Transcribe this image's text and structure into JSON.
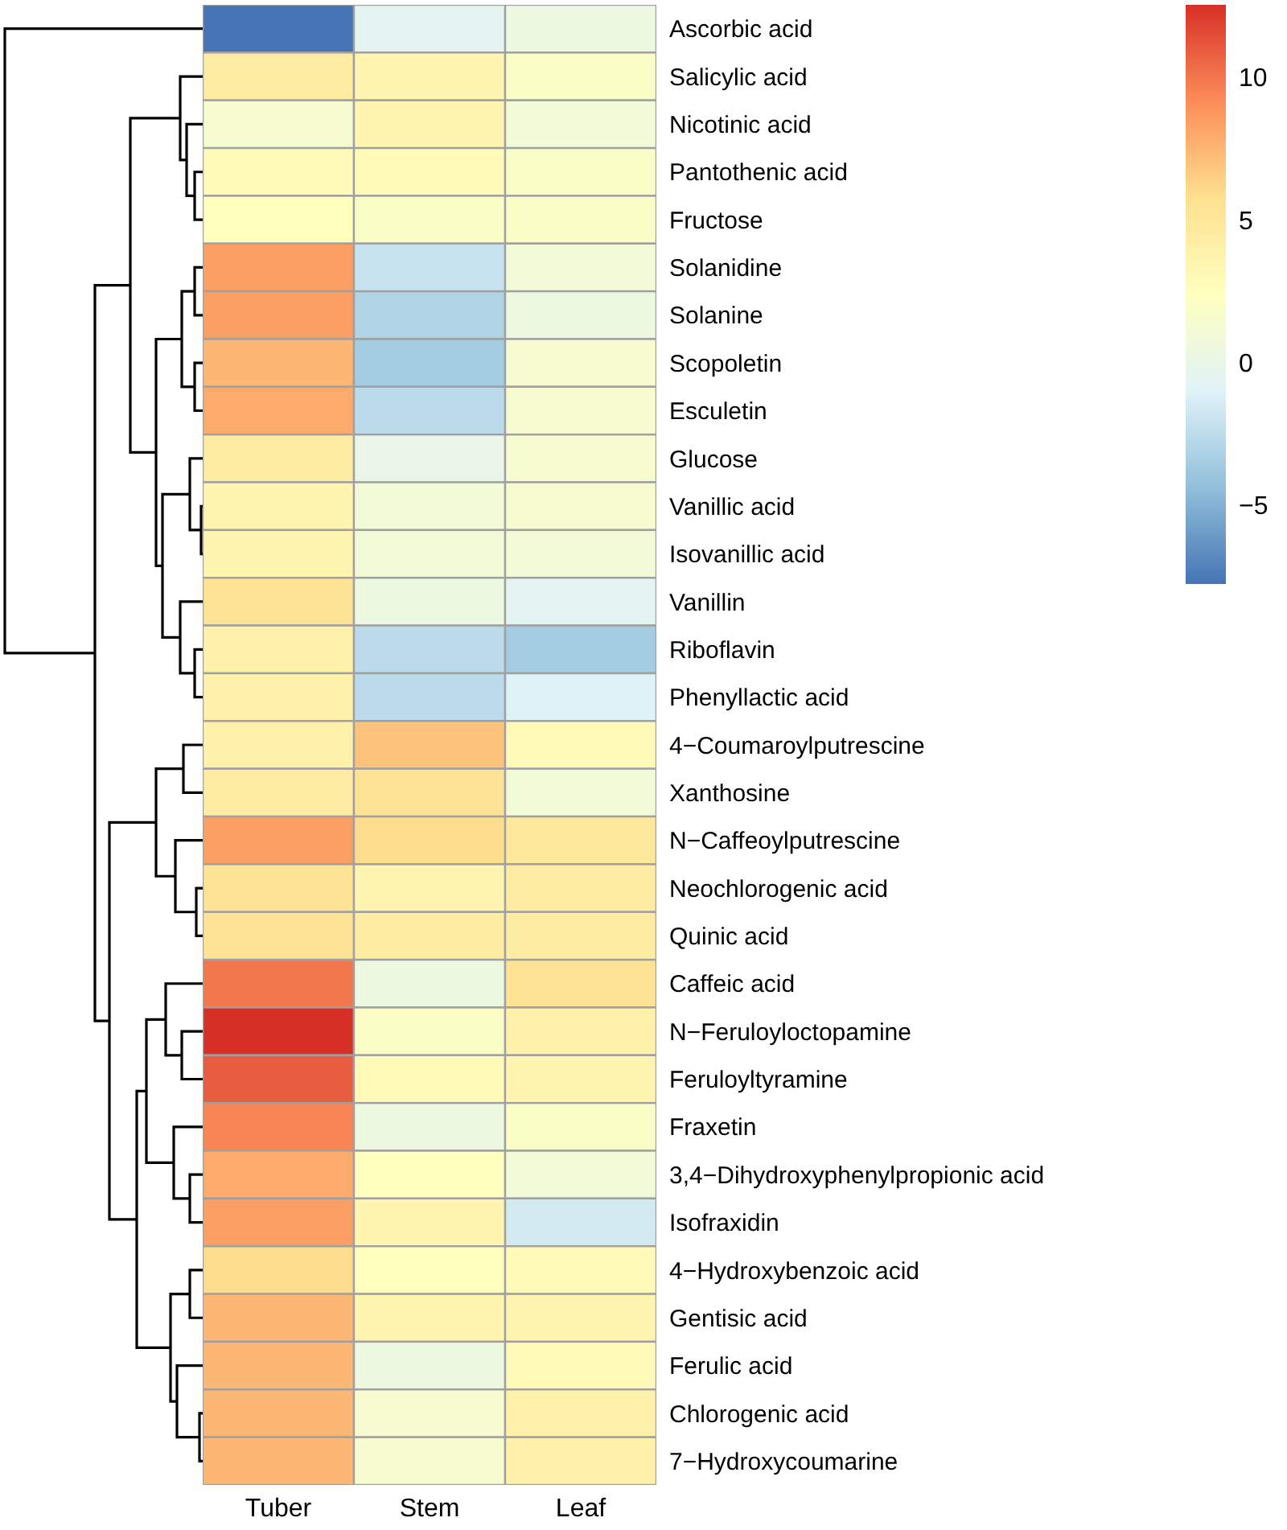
{
  "chart_data": {
    "type": "heatmap",
    "categories": [
      "Tuber",
      "Stem",
      "Leaf"
    ],
    "y_categories": [
      "Ascorbic acid",
      "Salicylic acid",
      "Nicotinic acid",
      "Pantothenic acid",
      "Fructose",
      "Solanidine",
      "Solanine",
      "Scopoletin",
      "Esculetin",
      "Glucose",
      "Vanillic acid",
      "Isovanillic acid",
      "Vanillin",
      "Riboflavin",
      "Phenyllactic acid",
      "4−Coumaroylputrescine",
      "Xanthosine",
      "N−Caffeoylputrescine",
      "Neochlorogenic acid",
      "Quinic acid",
      "Caffeic acid",
      "N−Feruloyloctopamine",
      "Feruloyltyramine",
      "Fraxetin",
      "3,4−Dihydroxyphenylpropionic acid",
      "Isofraxidin",
      "4−Hydroxybenzoic acid",
      "Gentisic acid",
      "Ferulic acid",
      "Chlorogenic acid",
      "7−Hydroxycoumarine"
    ],
    "cells": [
      [
        -7.7,
        -0.5,
        0.5
      ],
      [
        4.5,
        3.5,
        2
      ],
      [
        1.5,
        3.5,
        1
      ],
      [
        3,
        3,
        2
      ],
      [
        2.5,
        2,
        2
      ],
      [
        8.5,
        -2,
        1
      ],
      [
        8.5,
        -3,
        0.5
      ],
      [
        7.5,
        -3.5,
        1.5
      ],
      [
        8,
        -2.5,
        1.5
      ],
      [
        4.5,
        0,
        1.5
      ],
      [
        3.5,
        1,
        1.5
      ],
      [
        3.5,
        1,
        1
      ],
      [
        5.5,
        0.5,
        -0.5
      ],
      [
        4,
        -2.5,
        -3.5
      ],
      [
        4,
        -2.5,
        -1
      ],
      [
        4,
        7,
        3
      ],
      [
        4.5,
        5.5,
        1
      ],
      [
        8.5,
        6,
        5
      ],
      [
        5.5,
        3.5,
        4.5
      ],
      [
        5.5,
        4.5,
        4.5
      ],
      [
        10,
        0.5,
        5.5
      ],
      [
        12.6,
        2,
        4
      ],
      [
        11,
        3,
        3.5
      ],
      [
        9.5,
        0.5,
        2
      ],
      [
        8,
        2.5,
        1
      ],
      [
        8.5,
        3.5,
        -1.5
      ],
      [
        6,
        2.5,
        3
      ],
      [
        7.5,
        3.5,
        3.5
      ],
      [
        7.5,
        0.5,
        3
      ],
      [
        7.5,
        1.5,
        4
      ],
      [
        7.5,
        1.5,
        4
      ]
    ],
    "clim": [
      -7.7,
      12.6
    ],
    "cticks": [
      {
        "value": -5,
        "label": "−5"
      },
      0,
      5,
      10
    ]
  }
}
